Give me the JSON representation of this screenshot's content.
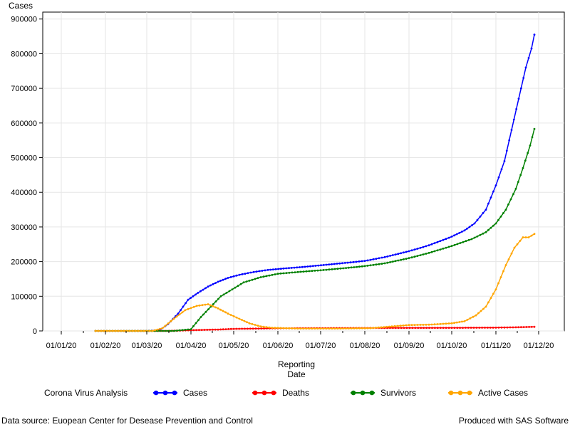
{
  "chart_data": {
    "type": "line",
    "ylabel": "Cases",
    "xlabel_lines": [
      "Reporting",
      "Date"
    ],
    "ylim": [
      0,
      920000
    ],
    "yticks": [
      0,
      100000,
      200000,
      300000,
      400000,
      500000,
      600000,
      700000,
      800000,
      900000
    ],
    "ytick_labels": [
      "0",
      "100000",
      "200000",
      "300000",
      "400000",
      "500000",
      "600000",
      "700000",
      "800000",
      "900000"
    ],
    "xlim": [
      "2019-12-19",
      "2020-12-19"
    ],
    "xticks": [
      "2020-01-01",
      "2020-02-01",
      "2020-03-01",
      "2020-04-01",
      "2020-05-01",
      "2020-06-01",
      "2020-07-01",
      "2020-08-01",
      "2020-09-01",
      "2020-10-01",
      "2020-11-01",
      "2020-12-01"
    ],
    "xtick_labels": [
      "01/01/20",
      "01/02/20",
      "01/03/20",
      "01/04/20",
      "01/05/20",
      "01/06/20",
      "01/07/20",
      "01/08/20",
      "01/09/20",
      "01/10/20",
      "01/11/20",
      "01/12/20"
    ],
    "grid": true,
    "legend_position": "bottom",
    "legend_title": "Corona Virus Analysis",
    "series": [
      {
        "name": "Cases",
        "color": "#0000ff",
        "points": [
          [
            "2020-01-25",
            0
          ],
          [
            "2020-03-01",
            0
          ],
          [
            "2020-03-10",
            2000
          ],
          [
            "2020-03-16",
            20000
          ],
          [
            "2020-03-23",
            50000
          ],
          [
            "2020-03-30",
            90000
          ],
          [
            "2020-04-06",
            110000
          ],
          [
            "2020-04-13",
            128000
          ],
          [
            "2020-04-20",
            142000
          ],
          [
            "2020-04-27",
            153000
          ],
          [
            "2020-05-05",
            162000
          ],
          [
            "2020-05-15",
            170000
          ],
          [
            "2020-05-25",
            176000
          ],
          [
            "2020-06-05",
            180000
          ],
          [
            "2020-06-20",
            185000
          ],
          [
            "2020-07-05",
            191000
          ],
          [
            "2020-07-20",
            197000
          ],
          [
            "2020-08-01",
            202000
          ],
          [
            "2020-08-15",
            213000
          ],
          [
            "2020-09-01",
            230000
          ],
          [
            "2020-09-15",
            247000
          ],
          [
            "2020-10-01",
            272000
          ],
          [
            "2020-10-10",
            290000
          ],
          [
            "2020-10-17",
            310000
          ],
          [
            "2020-10-25",
            350000
          ],
          [
            "2020-11-01",
            420000
          ],
          [
            "2020-11-07",
            490000
          ],
          [
            "2020-11-12",
            580000
          ],
          [
            "2020-11-17",
            670000
          ],
          [
            "2020-11-22",
            760000
          ],
          [
            "2020-11-26",
            815000
          ],
          [
            "2020-11-28",
            855000
          ]
        ]
      },
      {
        "name": "Deaths",
        "color": "#ff0000",
        "points": [
          [
            "2020-01-25",
            0
          ],
          [
            "2020-03-15",
            0
          ],
          [
            "2020-04-01",
            2000
          ],
          [
            "2020-04-20",
            4000
          ],
          [
            "2020-05-01",
            6000
          ],
          [
            "2020-06-01",
            7500
          ],
          [
            "2020-08-01",
            8500
          ],
          [
            "2020-10-01",
            9000
          ],
          [
            "2020-11-01",
            9500
          ],
          [
            "2020-11-15",
            10500
          ],
          [
            "2020-11-28",
            12000
          ]
        ]
      },
      {
        "name": "Survivors",
        "color": "#008000",
        "points": [
          [
            "2020-01-25",
            0
          ],
          [
            "2020-03-20",
            0
          ],
          [
            "2020-04-01",
            5000
          ],
          [
            "2020-04-08",
            40000
          ],
          [
            "2020-04-15",
            70000
          ],
          [
            "2020-04-22",
            100000
          ],
          [
            "2020-04-30",
            120000
          ],
          [
            "2020-05-08",
            140000
          ],
          [
            "2020-05-20",
            155000
          ],
          [
            "2020-06-01",
            165000
          ],
          [
            "2020-06-15",
            170000
          ],
          [
            "2020-07-01",
            175000
          ],
          [
            "2020-07-15",
            180000
          ],
          [
            "2020-08-01",
            187000
          ],
          [
            "2020-08-15",
            195000
          ],
          [
            "2020-09-01",
            210000
          ],
          [
            "2020-09-15",
            225000
          ],
          [
            "2020-10-01",
            245000
          ],
          [
            "2020-10-15",
            265000
          ],
          [
            "2020-10-25",
            285000
          ],
          [
            "2020-11-01",
            310000
          ],
          [
            "2020-11-08",
            350000
          ],
          [
            "2020-11-15",
            410000
          ],
          [
            "2020-11-20",
            470000
          ],
          [
            "2020-11-25",
            535000
          ],
          [
            "2020-11-28",
            583000
          ]
        ]
      },
      {
        "name": "Active Cases",
        "color": "#ffa500",
        "points": [
          [
            "2020-01-25",
            0
          ],
          [
            "2020-03-05",
            0
          ],
          [
            "2020-03-12",
            8000
          ],
          [
            "2020-03-20",
            35000
          ],
          [
            "2020-03-28",
            60000
          ],
          [
            "2020-04-05",
            72000
          ],
          [
            "2020-04-13",
            77000
          ],
          [
            "2020-04-20",
            65000
          ],
          [
            "2020-04-27",
            50000
          ],
          [
            "2020-05-05",
            35000
          ],
          [
            "2020-05-12",
            22000
          ],
          [
            "2020-05-20",
            13000
          ],
          [
            "2020-05-28",
            9000
          ],
          [
            "2020-06-15",
            7000
          ],
          [
            "2020-07-15",
            7000
          ],
          [
            "2020-08-05",
            8000
          ],
          [
            "2020-08-20",
            13000
          ],
          [
            "2020-09-01",
            17000
          ],
          [
            "2020-09-15",
            18000
          ],
          [
            "2020-10-01",
            22000
          ],
          [
            "2020-10-10",
            28000
          ],
          [
            "2020-10-18",
            45000
          ],
          [
            "2020-10-25",
            70000
          ],
          [
            "2020-11-01",
            120000
          ],
          [
            "2020-11-08",
            190000
          ],
          [
            "2020-11-14",
            240000
          ],
          [
            "2020-11-20",
            270000
          ],
          [
            "2020-11-24",
            270000
          ],
          [
            "2020-11-28",
            280000
          ]
        ]
      }
    ]
  },
  "footer": {
    "source": "Data source: Euopean Center for Desease Prevention and Control",
    "credit": "Produced with SAS Software"
  }
}
